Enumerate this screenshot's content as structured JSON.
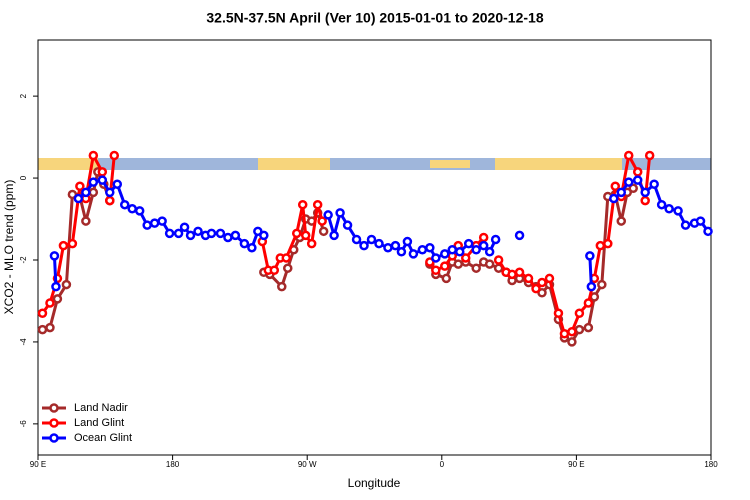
{
  "chart_data": {
    "type": "line",
    "title": "32.5N-37.5N April (Ver 10)   2015-01-01 to 2020-12-18",
    "x_label": "Longitude",
    "y_label": "XCO2 - MLO trend (ppm)",
    "xlim": [
      90,
      540
    ],
    "xticks": [
      {
        "value": 90,
        "label": "90 E"
      },
      180,
      {
        "value": 270,
        "label": "90 W"
      },
      {
        "value": 360,
        "label": "0"
      },
      {
        "value": 450,
        "label": "90 E"
      },
      {
        "value": 540,
        "label": "180"
      }
    ],
    "ylim": [
      -6.76,
      3.37
    ],
    "yticks": [
      -6,
      -4,
      -2,
      0,
      2
    ],
    "legend": "bottom-left",
    "series": [
      {
        "name": "Land Nadir",
        "color": "#a52a2a",
        "x": [
          93,
          98,
          103,
          109,
          113,
          118,
          122,
          127,
          130,
          134,
          138,
          null,
          241,
          245,
          253,
          257,
          261,
          265,
          269,
          273,
          277,
          281,
          null,
          352,
          356,
          363,
          367,
          371,
          376,
          383,
          388,
          392,
          398,
          403,
          407,
          412,
          418,
          423,
          427,
          432,
          438,
          442,
          447,
          452,
          458,
          462,
          467,
          471,
          476,
          480,
          484,
          488
        ],
        "values": [
          -3.7,
          -3.65,
          -2.95,
          -2.6,
          -0.4,
          -0.45,
          -1.05,
          -0.35,
          0.15,
          -0.15,
          -0.55,
          null,
          -2.3,
          -2.35,
          -2.65,
          -2.2,
          -1.75,
          -1.45,
          -1.0,
          -1.05,
          -0.85,
          -1.3,
          null,
          -2.1,
          -2.35,
          -2.45,
          -2.05,
          -2.1,
          -2.05,
          -2.2,
          -2.05,
          -2.1,
          -2.2,
          -2.3,
          -2.5,
          -2.45,
          -2.55,
          -2.65,
          -2.8,
          -2.6,
          -3.45,
          -3.9,
          -4.0,
          -3.7,
          -3.65,
          -2.9,
          -2.6,
          -0.45,
          -0.4,
          -1.05,
          -0.35,
          -0.25
        ]
      },
      {
        "name": "Land Glint",
        "color": "#ff0000",
        "x": [
          93,
          98,
          103,
          107,
          113,
          118,
          122,
          127,
          133,
          138,
          141,
          null,
          240,
          244,
          248,
          252,
          256,
          263,
          267,
          269,
          273,
          277,
          280,
          null,
          352,
          356,
          362,
          367,
          371,
          376,
          383,
          388,
          null,
          398,
          403,
          407,
          412,
          418,
          423,
          427,
          432,
          438,
          442,
          447,
          452,
          458,
          462,
          466,
          471,
          476,
          480,
          485,
          491,
          496,
          499
        ],
        "values": [
          -3.3,
          -3.05,
          -2.45,
          -1.65,
          -1.6,
          -0.2,
          -0.5,
          0.55,
          0.15,
          -0.55,
          0.55,
          null,
          -1.55,
          -2.25,
          -2.25,
          -1.95,
          -1.95,
          -1.35,
          -0.65,
          -1.4,
          -1.6,
          -0.65,
          -1.05,
          null,
          -2.05,
          -2.25,
          -2.15,
          -1.9,
          -1.65,
          -1.95,
          -1.65,
          -1.45,
          null,
          -2.0,
          -2.3,
          -2.35,
          -2.3,
          -2.45,
          -2.7,
          -2.55,
          -2.45,
          -3.3,
          -3.8,
          -3.75,
          -3.3,
          -3.05,
          -2.45,
          -1.65,
          -1.6,
          -0.2,
          -0.45,
          0.55,
          0.15,
          -0.55,
          0.55
        ]
      },
      {
        "name": "Ocean Glint",
        "color": "#0000ff",
        "x": [
          101,
          102,
          null,
          117,
          122,
          127,
          133,
          138,
          143,
          148,
          153,
          158,
          163,
          168,
          173,
          178,
          184,
          188,
          192,
          197,
          202,
          206,
          212,
          217,
          222,
          228,
          233,
          237,
          241,
          null,
          284,
          288,
          292,
          297,
          303,
          308,
          313,
          318,
          324,
          329,
          333,
          337,
          341,
          347,
          352,
          356,
          362,
          367,
          372,
          378,
          383,
          388,
          392,
          396,
          null,
          412,
          null,
          459,
          460,
          null,
          475,
          480,
          485,
          491,
          496,
          502,
          507,
          512,
          518,
          523,
          529,
          533,
          538
        ],
        "values": [
          -1.9,
          -2.65,
          null,
          -0.5,
          -0.35,
          -0.1,
          -0.05,
          -0.35,
          -0.15,
          -0.65,
          -0.75,
          -0.8,
          -1.15,
          -1.1,
          -1.05,
          -1.35,
          -1.35,
          -1.2,
          -1.4,
          -1.3,
          -1.4,
          -1.35,
          -1.35,
          -1.45,
          -1.4,
          -1.6,
          -1.7,
          -1.3,
          -1.4,
          null,
          -0.9,
          -1.4,
          -0.85,
          -1.15,
          -1.5,
          -1.65,
          -1.5,
          -1.6,
          -1.7,
          -1.65,
          -1.8,
          -1.55,
          -1.85,
          -1.75,
          -1.7,
          -1.95,
          -1.85,
          -1.75,
          -1.8,
          -1.6,
          -1.75,
          -1.65,
          -1.8,
          -1.5,
          null,
          -1.4,
          null,
          -1.9,
          -2.65,
          null,
          -0.5,
          -0.35,
          -0.1,
          -0.05,
          -0.35,
          -0.15,
          -0.65,
          -0.75,
          -0.8,
          -1.15,
          -1.1,
          -1.05,
          -1.3
        ]
      }
    ]
  }
}
